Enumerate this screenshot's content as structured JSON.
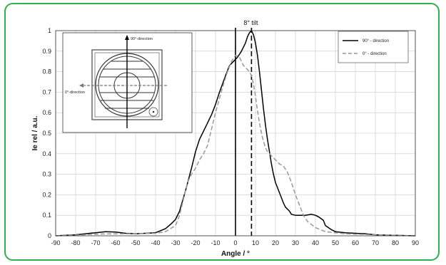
{
  "chart_data": {
    "type": "line",
    "xlabel": "Angle / °",
    "ylabel": "Ie rel / a.u.",
    "xlim": [
      -90,
      90
    ],
    "ylim": [
      0,
      1
    ],
    "xticks": [
      -90,
      -80,
      -70,
      -60,
      -50,
      -40,
      -30,
      -20,
      -10,
      0,
      10,
      20,
      30,
      40,
      50,
      60,
      70,
      80,
      90
    ],
    "yticks": [
      0,
      0.1,
      0.2,
      0.3,
      0.4,
      0.5,
      0.6,
      0.7,
      0.8,
      0.9,
      1
    ],
    "grid": true,
    "legend_position": "top-right",
    "annotation": {
      "text": "8° tilt",
      "x": 8
    },
    "vertical_lines": [
      {
        "x": 0,
        "style": "solid"
      },
      {
        "x": 8,
        "style": "dashed"
      }
    ],
    "series": [
      {
        "name": "90° - direction",
        "style": "solid",
        "color": "#000000",
        "x": [
          -90,
          -80,
          -75,
          -70,
          -65,
          -60,
          -55,
          -50,
          -45,
          -40,
          -35,
          -32,
          -30,
          -28,
          -25,
          -22,
          -20,
          -18,
          -15,
          -12,
          -10,
          -8,
          -5,
          -3,
          -1,
          1,
          3,
          5,
          6,
          7,
          8,
          9,
          10,
          11,
          12,
          13,
          14,
          15,
          16,
          17,
          18,
          19,
          20,
          22,
          24,
          25,
          27,
          28,
          30,
          32,
          35,
          38,
          40,
          42,
          44,
          45,
          48,
          50,
          55,
          60,
          65,
          70,
          80,
          90
        ],
        "y": [
          0,
          0.005,
          0.01,
          0.015,
          0.02,
          0.018,
          0.012,
          0.01,
          0.012,
          0.015,
          0.035,
          0.06,
          0.08,
          0.12,
          0.22,
          0.33,
          0.41,
          0.47,
          0.53,
          0.59,
          0.64,
          0.7,
          0.78,
          0.83,
          0.85,
          0.87,
          0.9,
          0.94,
          0.97,
          0.99,
          1.0,
          0.98,
          0.94,
          0.88,
          0.8,
          0.71,
          0.62,
          0.54,
          0.47,
          0.41,
          0.35,
          0.3,
          0.26,
          0.21,
          0.16,
          0.14,
          0.12,
          0.105,
          0.1,
          0.1,
          0.1,
          0.105,
          0.1,
          0.09,
          0.075,
          0.05,
          0.03,
          0.02,
          0.015,
          0.012,
          0.01,
          0.005,
          0.002,
          0
        ]
      },
      {
        "name": "0° - direction",
        "style": "dashed",
        "color": "#999999",
        "x": [
          -90,
          -80,
          -70,
          -60,
          -50,
          -40,
          -35,
          -30,
          -28,
          -26,
          -24,
          -22,
          -20,
          -18,
          -16,
          -14,
          -12,
          -10,
          -8,
          -6,
          -4,
          -2,
          0,
          2,
          3,
          4,
          5,
          6,
          7,
          8,
          9,
          10,
          11,
          12,
          13,
          14,
          15,
          16,
          17,
          18,
          20,
          22,
          24,
          26,
          28,
          30,
          32,
          34,
          36,
          40,
          45,
          50,
          55,
          60,
          70,
          80,
          90
        ],
        "y": [
          0,
          0.003,
          0.008,
          0.01,
          0.01,
          0.012,
          0.02,
          0.05,
          0.1,
          0.18,
          0.26,
          0.3,
          0.33,
          0.37,
          0.4,
          0.44,
          0.52,
          0.6,
          0.67,
          0.74,
          0.8,
          0.85,
          0.88,
          0.87,
          0.85,
          0.83,
          0.82,
          0.81,
          0.8,
          0.78,
          0.74,
          0.68,
          0.61,
          0.55,
          0.5,
          0.46,
          0.43,
          0.41,
          0.4,
          0.39,
          0.37,
          0.35,
          0.34,
          0.31,
          0.26,
          0.2,
          0.15,
          0.1,
          0.07,
          0.04,
          0.02,
          0.015,
          0.01,
          0.008,
          0.005,
          0.002,
          0
        ]
      }
    ],
    "inset": {
      "label_vertical": "90°-direction",
      "label_horizontal": "0°-direction"
    }
  }
}
